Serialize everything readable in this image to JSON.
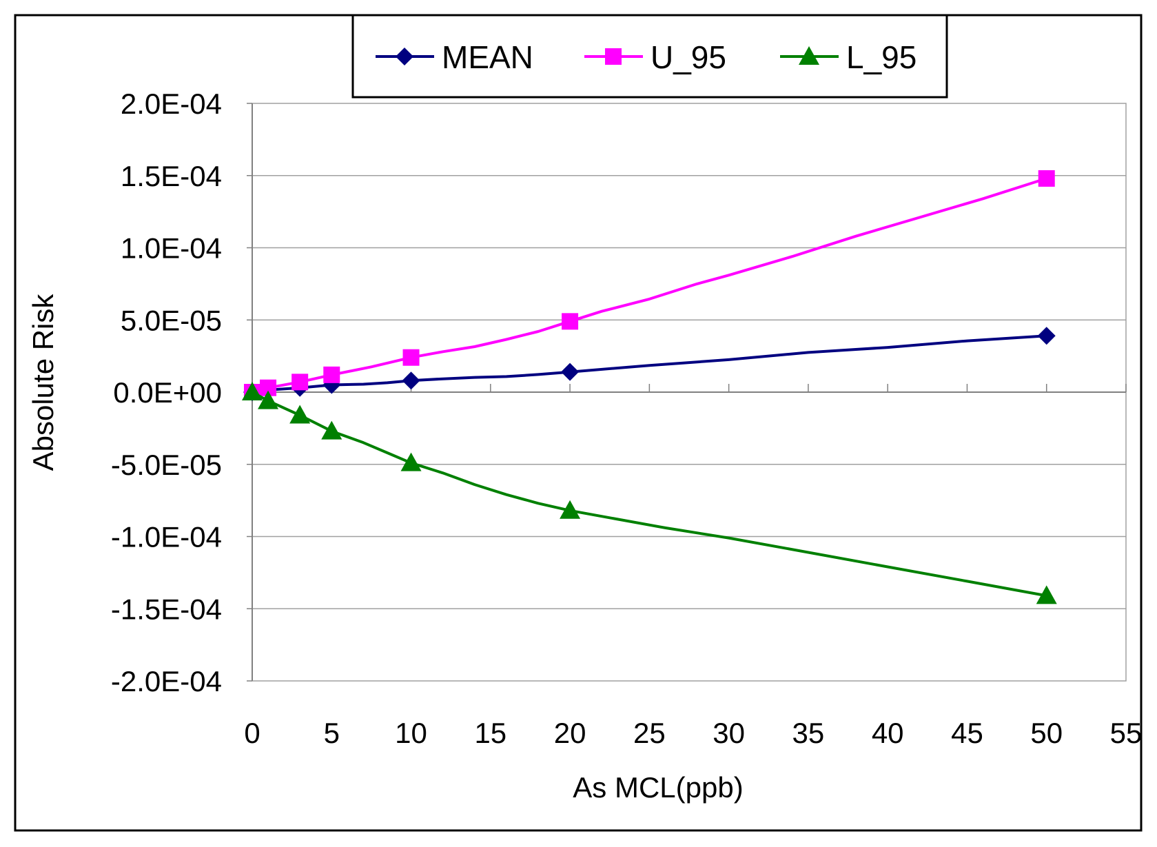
{
  "chart_data": {
    "type": "line",
    "xlabel": "As MCL(ppb)",
    "ylabel": "Absolute Risk",
    "xlim": [
      0,
      55
    ],
    "ylim": [
      -0.0002,
      0.0002
    ],
    "x_ticks": [
      "0",
      "5",
      "10",
      "15",
      "20",
      "25",
      "30",
      "35",
      "40",
      "45",
      "50",
      "55"
    ],
    "y_ticks": [
      "2.0E-04",
      "1.5E-04",
      "1.0E-04",
      "5.0E-05",
      "0.0E+00",
      "-5.0E-05",
      "-1.0E-04",
      "-1.5E-04",
      "-2.0E-04"
    ],
    "grid": "horizontal",
    "legend_position": "top",
    "series": [
      {
        "name": "MEAN",
        "color": "#000080",
        "marker": "diamond",
        "markers": [
          [
            0,
            0
          ],
          [
            1,
            1.5e-06
          ],
          [
            3,
            3e-06
          ],
          [
            5,
            5e-06
          ],
          [
            10,
            8e-06
          ],
          [
            20,
            1.4e-05
          ],
          [
            50,
            3.9e-05
          ]
        ],
        "line": [
          [
            0,
            0
          ],
          [
            1,
            1.5e-06
          ],
          [
            3,
            3e-06
          ],
          [
            5,
            5e-06
          ],
          [
            7,
            5.5e-06
          ],
          [
            8.5,
            6.5e-06
          ],
          [
            10,
            8e-06
          ],
          [
            12,
            9.2e-06
          ],
          [
            14,
            1.02e-05
          ],
          [
            16,
            1.08e-05
          ],
          [
            18,
            1.22e-05
          ],
          [
            20,
            1.4e-05
          ],
          [
            25,
            1.85e-05
          ],
          [
            30,
            2.25e-05
          ],
          [
            35,
            2.75e-05
          ],
          [
            40,
            3.1e-05
          ],
          [
            45,
            3.55e-05
          ],
          [
            50,
            3.9e-05
          ]
        ]
      },
      {
        "name": "U_95",
        "color": "#ff00ff",
        "marker": "square",
        "markers": [
          [
            0,
            0
          ],
          [
            1,
            3e-06
          ],
          [
            3,
            7e-06
          ],
          [
            5,
            1.2e-05
          ],
          [
            10,
            2.4e-05
          ],
          [
            20,
            4.9e-05
          ],
          [
            50,
            0.000148
          ]
        ],
        "line": [
          [
            0,
            0
          ],
          [
            1,
            3e-06
          ],
          [
            3,
            7e-06
          ],
          [
            5,
            1.2e-05
          ],
          [
            7.5,
            1.75e-05
          ],
          [
            10,
            2.4e-05
          ],
          [
            12,
            2.8e-05
          ],
          [
            14,
            3.15e-05
          ],
          [
            16,
            3.65e-05
          ],
          [
            18,
            4.2e-05
          ],
          [
            20,
            4.9e-05
          ],
          [
            22,
            5.6e-05
          ],
          [
            25,
            6.45e-05
          ],
          [
            28,
            7.5e-05
          ],
          [
            30,
            8.1e-05
          ],
          [
            34,
            9.4e-05
          ],
          [
            38,
            0.000108
          ],
          [
            42,
            0.000121
          ],
          [
            46,
            0.000134
          ],
          [
            50,
            0.000148
          ]
        ]
      },
      {
        "name": "L_95",
        "color": "#008000",
        "marker": "triangle",
        "markers": [
          [
            0,
            0
          ],
          [
            1,
            -6e-06
          ],
          [
            3,
            -1.6e-05
          ],
          [
            5,
            -2.7e-05
          ],
          [
            10,
            -4.9e-05
          ],
          [
            20,
            -8.2e-05
          ],
          [
            50,
            -0.000141
          ]
        ],
        "line": [
          [
            0,
            0
          ],
          [
            1,
            -6e-06
          ],
          [
            3,
            -1.6e-05
          ],
          [
            5,
            -2.7e-05
          ],
          [
            7,
            -3.5e-05
          ],
          [
            8.5,
            -4.2e-05
          ],
          [
            10,
            -4.9e-05
          ],
          [
            12,
            -5.6e-05
          ],
          [
            14,
            -6.4e-05
          ],
          [
            16,
            -7.1e-05
          ],
          [
            18,
            -7.7e-05
          ],
          [
            20,
            -8.2e-05
          ],
          [
            23,
            -8.8e-05
          ],
          [
            26,
            -9.4e-05
          ],
          [
            30,
            -0.000101
          ],
          [
            35,
            -0.000111
          ],
          [
            40,
            -0.000121
          ],
          [
            45,
            -0.000131
          ],
          [
            50,
            -0.000141
          ]
        ]
      }
    ]
  }
}
